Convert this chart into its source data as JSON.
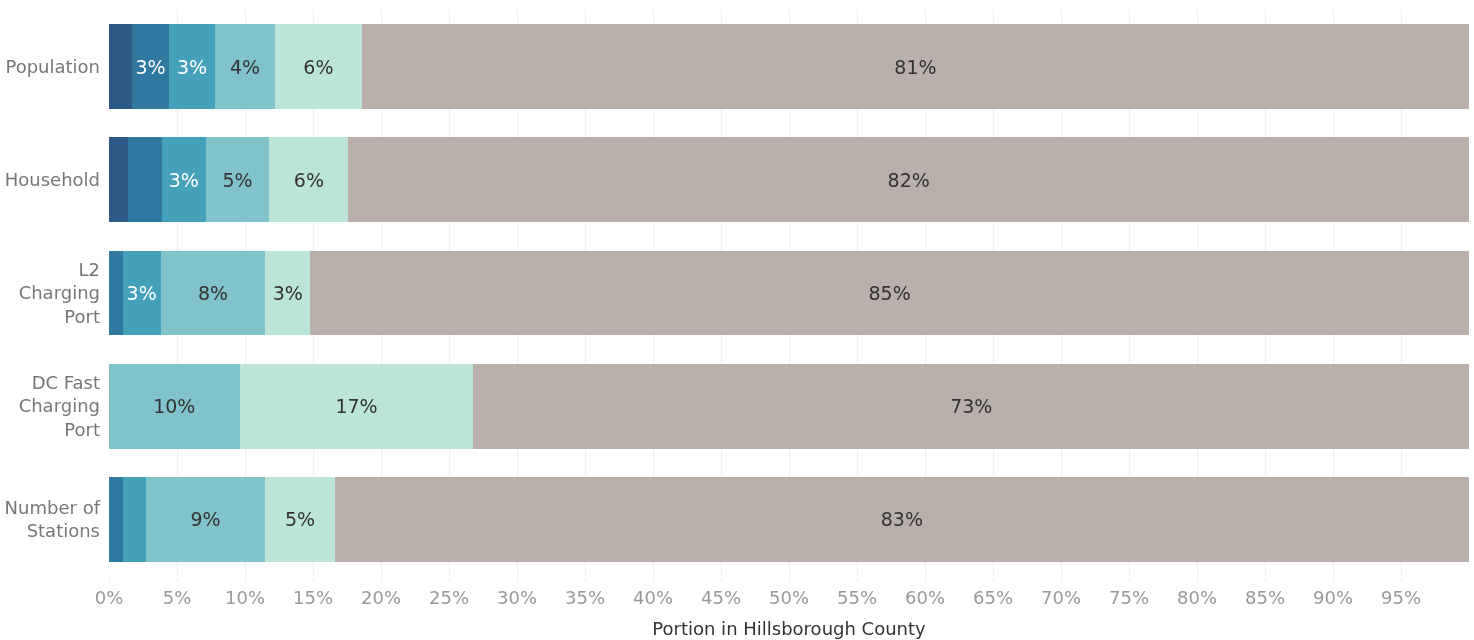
{
  "chart_data": {
    "type": "bar",
    "orientation": "horizontal",
    "stacked": true,
    "xlabel": "Portion in Hillsborough County",
    "categories": [
      "Population",
      "Household",
      "L2 Charging Port",
      "DC Fast Charging Port",
      "Number of Stations"
    ],
    "series": [
      {
        "color": "#2c5985",
        "values": [
          1.7,
          1.4,
          null,
          null,
          null
        ],
        "value_labels": [
          null,
          null,
          null,
          null,
          null
        ]
      },
      {
        "color": "#2f78a0",
        "values": [
          2.7,
          2.5,
          1.0,
          null,
          1.0
        ],
        "value_labels": [
          "3%",
          null,
          null,
          null,
          null
        ]
      },
      {
        "color": "#45a0b9",
        "values": [
          3.4,
          3.2,
          2.8,
          null,
          1.7
        ],
        "value_labels": [
          "3%",
          "3%",
          "3%",
          null,
          null
        ]
      },
      {
        "color": "#80c3ca",
        "values": [
          4.4,
          4.7,
          7.7,
          9.6,
          8.8
        ],
        "value_labels": [
          "4%",
          "5%",
          "8%",
          "10%",
          "9%"
        ]
      },
      {
        "color": "#bce4d9",
        "values": [
          6.4,
          5.8,
          3.3,
          17.2,
          5.1
        ],
        "value_labels": [
          "6%",
          "6%",
          "3%",
          "17%",
          "5%"
        ]
      },
      {
        "color": "#b9afab",
        "values": [
          81.4,
          82.4,
          85.2,
          73.2,
          83.4
        ],
        "value_labels": [
          "81%",
          "82%",
          "85%",
          "73%",
          "83%"
        ]
      }
    ],
    "xlim": [
      0,
      100
    ],
    "xticks": [
      {
        "value": 0,
        "label": "0%"
      },
      {
        "value": 5,
        "label": "5%"
      },
      {
        "value": 10,
        "label": "10%"
      },
      {
        "value": 15,
        "label": "15%"
      },
      {
        "value": 20,
        "label": "20%"
      },
      {
        "value": 25,
        "label": "25%"
      },
      {
        "value": 30,
        "label": "30%"
      },
      {
        "value": 35,
        "label": "35%"
      },
      {
        "value": 40,
        "label": "40%"
      },
      {
        "value": 45,
        "label": "45%"
      },
      {
        "value": 50,
        "label": "50%"
      },
      {
        "value": 55,
        "label": "55%"
      },
      {
        "value": 60,
        "label": "60%"
      },
      {
        "value": 65,
        "label": "65%"
      },
      {
        "value": 70,
        "label": "70%"
      },
      {
        "value": 75,
        "label": "75%"
      },
      {
        "value": 80,
        "label": "80%"
      },
      {
        "value": 85,
        "label": "85%"
      },
      {
        "value": 90,
        "label": "90%"
      },
      {
        "value": 95,
        "label": "95%"
      }
    ],
    "grid": "x"
  }
}
